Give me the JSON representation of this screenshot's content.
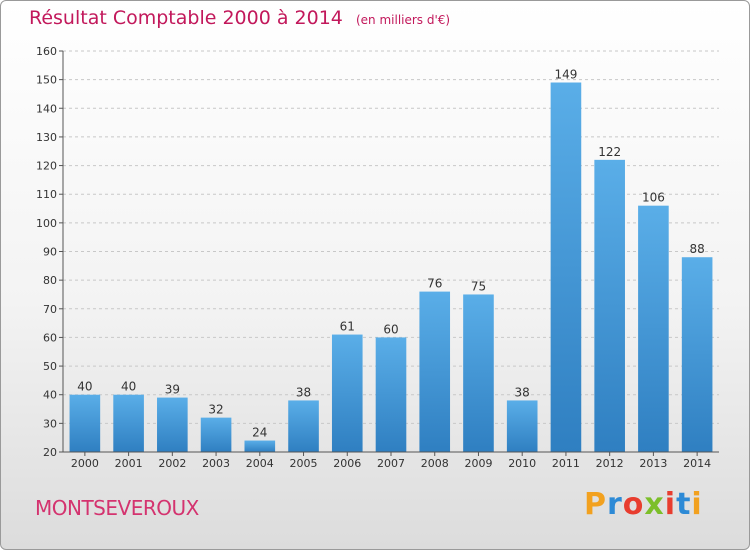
{
  "chart_data": {
    "type": "bar",
    "title": "Résultat Comptable 2000 à 2014",
    "subtitle": "(en milliers d'€)",
    "categories": [
      "2000",
      "2001",
      "2002",
      "2003",
      "2004",
      "2005",
      "2006",
      "2007",
      "2008",
      "2009",
      "2010",
      "2011",
      "2012",
      "2013",
      "2014"
    ],
    "values": [
      40,
      40,
      39,
      32,
      24,
      38,
      61,
      60,
      76,
      75,
      38,
      149,
      122,
      106,
      88
    ],
    "ylim": [
      20,
      160
    ],
    "yticks": [
      20,
      30,
      40,
      50,
      60,
      70,
      80,
      90,
      100,
      110,
      120,
      130,
      140,
      150,
      160
    ],
    "xlabel": "",
    "ylabel": "",
    "grid": true,
    "bar_color_top": "#5aaee8",
    "bar_color_bottom": "#2f7fc1"
  },
  "footer": {
    "commune": "MONTSEVEROUX",
    "brand_letters": [
      "P",
      "r",
      "o",
      "x",
      "i",
      "t",
      "i"
    ],
    "brand_colors": [
      "#f2a11f",
      "#2d8ad6",
      "#e83d2f",
      "#7cbf2a",
      "#e83d2f",
      "#2d8ad6",
      "#f2a11f"
    ]
  }
}
